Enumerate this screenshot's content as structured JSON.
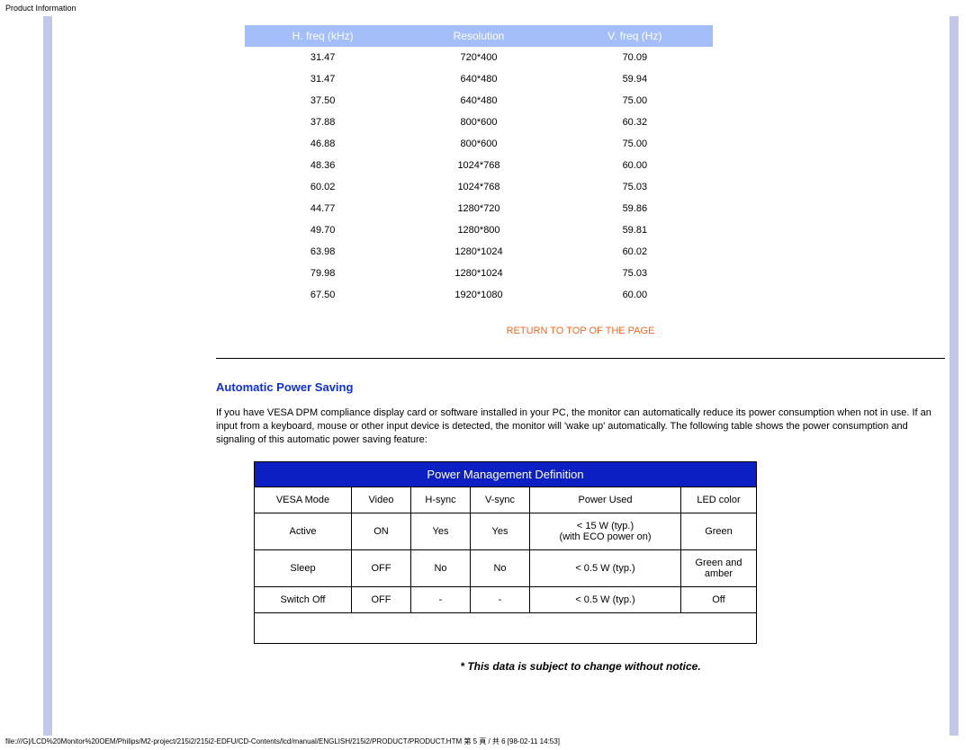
{
  "header": {
    "title": "Product Information"
  },
  "freq_table": {
    "type": "table",
    "background_color": "#ffffff",
    "header_bg_color": "#a4befa",
    "header_text_color": "#ffffff",
    "columns": [
      "H. freq (kHz)",
      "Resolution",
      "V. freq (Hz)"
    ],
    "rows": [
      [
        "31.47",
        "720*400",
        "70.09"
      ],
      [
        "31.47",
        "640*480",
        "59.94"
      ],
      [
        "37.50",
        "640*480",
        "75.00"
      ],
      [
        "37.88",
        "800*600",
        "60.32"
      ],
      [
        "46.88",
        "800*600",
        "75.00"
      ],
      [
        "48.36",
        "1024*768",
        "60.00"
      ],
      [
        "60.02",
        "1024*768",
        "75.03"
      ],
      [
        "44.77",
        "1280*720",
        "59.86"
      ],
      [
        "49.70",
        "1280*800",
        "59.81"
      ],
      [
        "63.98",
        "1280*1024",
        "60.02"
      ],
      [
        "79.98",
        "1280*1024",
        "75.03"
      ],
      [
        "67.50",
        "1920*1080",
        "60.00"
      ]
    ]
  },
  "return_link": {
    "label": "RETURN TO TOP OF THE PAGE",
    "color": "#f36825"
  },
  "section": {
    "heading": "Automatic Power Saving",
    "heading_color": "#0e2ee0",
    "body_text": "If you have VESA DPM compliance display card or software installed in your PC, the monitor can automatically reduce its power consumption when not in use. If an input from a keyboard, mouse or other input device is detected, the monitor will 'wake up' automatically. The following table shows the power consumption and signaling of this automatic power saving feature:"
  },
  "pm_table": {
    "type": "table",
    "title": "Power Management Definition",
    "title_bg_color": "#0b1fc2",
    "title_text_color": "#ffffff",
    "border_color": "#000000",
    "columns": [
      "VESA Mode",
      "Video",
      "H-sync",
      "V-sync",
      "Power Used",
      "LED color"
    ],
    "rows": [
      {
        "mode": "Active",
        "video": "ON",
        "hsync": "Yes",
        "vsync": "Yes",
        "power_line1": "< 15 W (typ.)",
        "power_line2": "(with ECO power on)",
        "led_line1": "Green",
        "led_line2": ""
      },
      {
        "mode": "Sleep",
        "video": "OFF",
        "hsync": "No",
        "vsync": "No",
        "power_line1": "< 0.5 W (typ.)",
        "power_line2": "",
        "led_line1": "Green and",
        "led_line2": "amber"
      },
      {
        "mode": "Switch Off",
        "video": "OFF",
        "hsync": "-",
        "vsync": "-",
        "power_line1": "< 0.5 W (typ.)",
        "power_line2": "",
        "led_line1": "Off",
        "led_line2": ""
      }
    ]
  },
  "disclaimer": "* This data is subject to change without notice.",
  "footer": {
    "text": "file:///G|/LCD%20Monitor%20OEM/Philips/M2-project/215i2/215i2-EDFU/CD-Contents/lcd/manual/ENGLISH/215i2/PRODUCT/PRODUCT.HTM 第 5 頁 / 共 6 [98-02-11 14:53]"
  },
  "style": {
    "sidebar_color": "#c3c8ea",
    "body_font_family": "Arial, Helvetica, sans-serif"
  }
}
